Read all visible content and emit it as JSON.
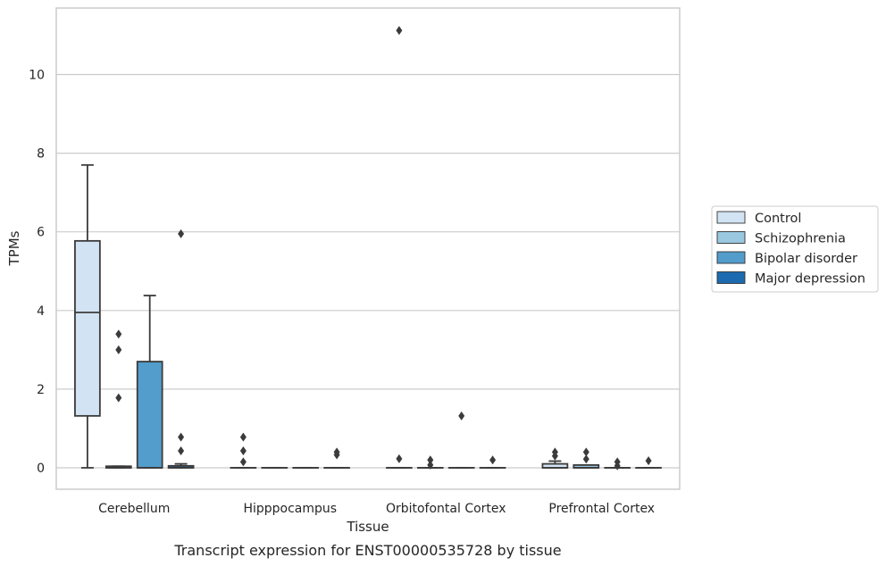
{
  "chart_data": {
    "type": "box",
    "xlabel": "Tissue",
    "ylabel": "TPMs",
    "caption": "Transcript expression for ENST00000535728 by tissue",
    "ylim": [
      -0.55,
      11.7
    ],
    "yticks": [
      0,
      2,
      4,
      6,
      8,
      10
    ],
    "grid": "horizontal",
    "legend_position": "right",
    "categories": [
      "Cerebellum",
      "Hipppocampus",
      "Orbitofontal Cortex",
      "Prefrontal Cortex"
    ],
    "series": [
      {
        "name": "Control",
        "color": "#d2e3f3",
        "boxes": [
          {
            "q1": 1.32,
            "median": 3.95,
            "q3": 5.77,
            "whislo": 0.0,
            "whishi": 7.7,
            "fliers": []
          },
          {
            "q1": 0.0,
            "median": 0.0,
            "q3": 0.0,
            "whislo": 0.0,
            "whishi": 0.0,
            "fliers": [
              0.78,
              0.43,
              0.15
            ]
          },
          {
            "q1": 0.0,
            "median": 0.0,
            "q3": 0.0,
            "whislo": 0.0,
            "whishi": 0.0,
            "fliers": [
              11.12,
              0.23
            ]
          },
          {
            "q1": 0.0,
            "median": 0.0,
            "q3": 0.1,
            "whislo": 0.0,
            "whishi": 0.17,
            "fliers": [
              0.4,
              0.3
            ]
          }
        ]
      },
      {
        "name": "Schizophrenia",
        "color": "#9ac8e0",
        "boxes": [
          {
            "q1": 0.0,
            "median": 0.0,
            "q3": 0.04,
            "whislo": 0.0,
            "whishi": 0.04,
            "fliers": [
              3.4,
              3.0,
              1.78
            ]
          },
          {
            "q1": 0.0,
            "median": 0.0,
            "q3": 0.0,
            "whislo": 0.0,
            "whishi": 0.0,
            "fliers": []
          },
          {
            "q1": 0.0,
            "median": 0.0,
            "q3": 0.0,
            "whislo": 0.0,
            "whishi": 0.0,
            "fliers": [
              0.2,
              0.07
            ]
          },
          {
            "q1": 0.0,
            "median": 0.0,
            "q3": 0.07,
            "whislo": 0.0,
            "whishi": 0.07,
            "fliers": [
              0.4,
              0.22
            ]
          }
        ]
      },
      {
        "name": "Bipolar disorder",
        "color": "#529dcc",
        "boxes": [
          {
            "q1": 0.0,
            "median": 0.0,
            "q3": 2.7,
            "whislo": 0.0,
            "whishi": 4.38,
            "fliers": []
          },
          {
            "q1": 0.0,
            "median": 0.0,
            "q3": 0.0,
            "whislo": 0.0,
            "whishi": 0.0,
            "fliers": []
          },
          {
            "q1": 0.0,
            "median": 0.0,
            "q3": 0.0,
            "whislo": 0.0,
            "whishi": 0.0,
            "fliers": [
              1.32
            ]
          },
          {
            "q1": 0.0,
            "median": 0.0,
            "q3": 0.0,
            "whislo": 0.0,
            "whishi": 0.0,
            "fliers": [
              0.15,
              0.05
            ]
          }
        ]
      },
      {
        "name": "Major depression",
        "color": "#1c6aaf",
        "boxes": [
          {
            "q1": 0.0,
            "median": 0.0,
            "q3": 0.05,
            "whislo": 0.0,
            "whishi": 0.1,
            "fliers": [
              5.95,
              0.78,
              0.43
            ]
          },
          {
            "q1": 0.0,
            "median": 0.0,
            "q3": 0.0,
            "whislo": 0.0,
            "whishi": 0.0,
            "fliers": [
              0.4,
              0.33
            ]
          },
          {
            "q1": 0.0,
            "median": 0.0,
            "q3": 0.0,
            "whislo": 0.0,
            "whishi": 0.0,
            "fliers": [
              0.2
            ]
          },
          {
            "q1": 0.0,
            "median": 0.0,
            "q3": 0.0,
            "whislo": 0.0,
            "whishi": 0.0,
            "fliers": [
              0.18
            ]
          }
        ]
      }
    ]
  }
}
